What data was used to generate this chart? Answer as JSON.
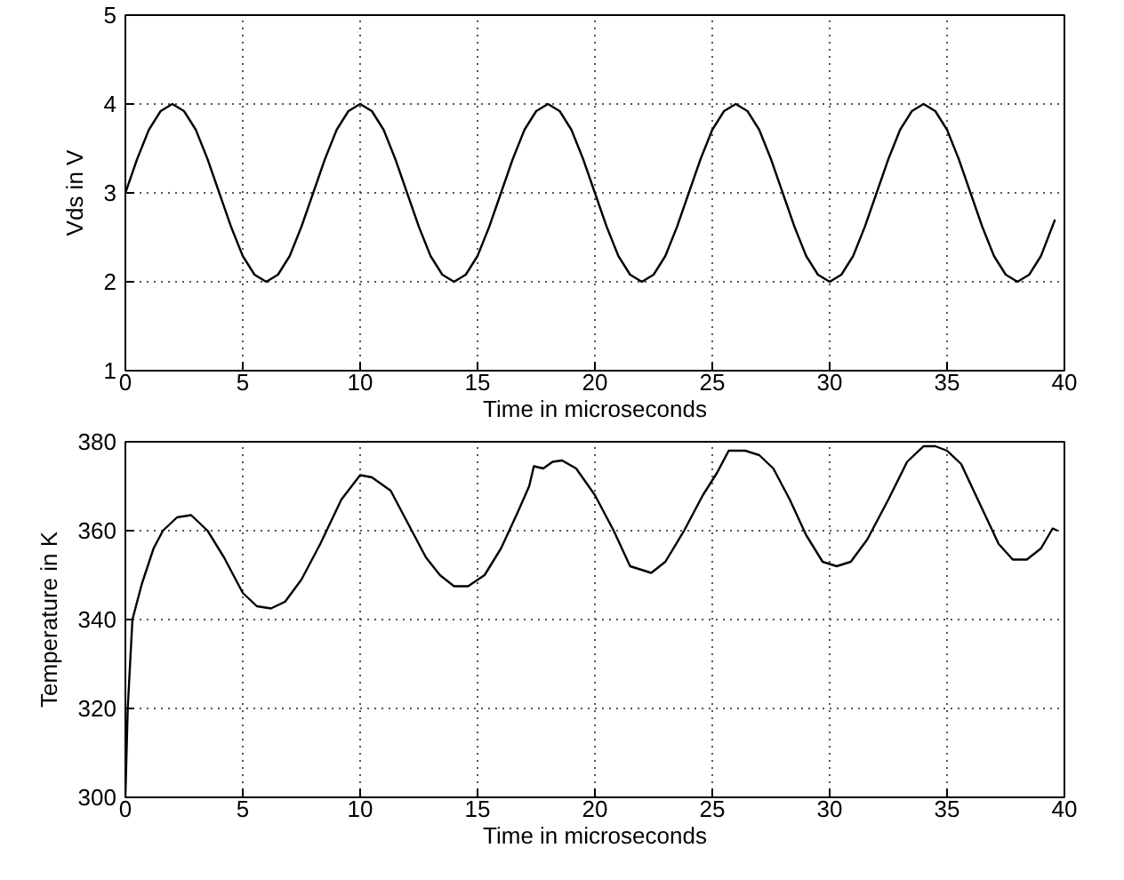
{
  "chart_data": [
    {
      "type": "line",
      "xlabel": "Time in microseconds",
      "ylabel": "Vds in V",
      "xlim": [
        0,
        40
      ],
      "ylim": [
        1,
        5
      ],
      "xticks": [
        0,
        5,
        10,
        15,
        20,
        25,
        30,
        35,
        40
      ],
      "yticks": [
        1,
        2,
        3,
        4,
        5
      ],
      "grid": true,
      "line_style": "solid",
      "series": [
        {
          "color": "#000000",
          "x": [
            0,
            0.5,
            1,
            1.5,
            2,
            2.5,
            3,
            3.5,
            4,
            4.5,
            5,
            5.5,
            6,
            6.5,
            7,
            7.5,
            8,
            8.5,
            9,
            9.5,
            10,
            10.5,
            11,
            11.5,
            12,
            12.5,
            13,
            13.5,
            14,
            14.5,
            15,
            15.5,
            16,
            16.5,
            17,
            17.5,
            18,
            18.5,
            19,
            19.5,
            20,
            20.5,
            21,
            21.5,
            22,
            22.5,
            23,
            23.5,
            24,
            24.5,
            25,
            25.5,
            26,
            26.5,
            27,
            27.5,
            28,
            28.5,
            29,
            29.5,
            30,
            30.5,
            31,
            31.5,
            32,
            32.5,
            33,
            33.5,
            34,
            34.5,
            35,
            35.5,
            36,
            36.5,
            37,
            37.5,
            38,
            38.5,
            39,
            39.6
          ],
          "values": [
            3.0,
            3.38,
            3.71,
            3.92,
            4.0,
            3.92,
            3.71,
            3.38,
            3.0,
            2.62,
            2.29,
            2.08,
            2.0,
            2.08,
            2.29,
            2.62,
            3.0,
            3.38,
            3.71,
            3.92,
            4.0,
            3.92,
            3.71,
            3.38,
            3.0,
            2.62,
            2.29,
            2.08,
            2.0,
            2.08,
            2.29,
            2.62,
            3.0,
            3.38,
            3.71,
            3.92,
            4.0,
            3.92,
            3.71,
            3.38,
            3.0,
            2.62,
            2.29,
            2.08,
            2.0,
            2.08,
            2.29,
            2.62,
            3.0,
            3.38,
            3.71,
            3.92,
            4.0,
            3.92,
            3.71,
            3.38,
            3.0,
            2.62,
            2.29,
            2.08,
            2.0,
            2.08,
            2.29,
            2.62,
            3.0,
            3.38,
            3.71,
            3.92,
            4.0,
            3.92,
            3.71,
            3.38,
            3.0,
            2.62,
            2.29,
            2.08,
            2.0,
            2.08,
            2.29,
            2.7
          ]
        }
      ]
    },
    {
      "type": "line",
      "xlabel": "Time in microseconds",
      "ylabel": "Temperature in K",
      "xlim": [
        0,
        40
      ],
      "ylim": [
        300,
        380
      ],
      "xticks": [
        0,
        5,
        10,
        15,
        20,
        25,
        30,
        35,
        40
      ],
      "yticks": [
        300,
        320,
        340,
        360,
        380
      ],
      "grid": true,
      "line_style": "solid",
      "series": [
        {
          "color": "#000000",
          "x": [
            0,
            0.1,
            0.3,
            0.7,
            1.2,
            1.6,
            2.2,
            2.8,
            3.5,
            4.2,
            5,
            5.6,
            6.2,
            6.8,
            7.5,
            8.3,
            9.2,
            10,
            10.5,
            11.3,
            12,
            12.8,
            13.4,
            14,
            14.6,
            15.3,
            16,
            16.7,
            17.2,
            17.4,
            17.8,
            18.2,
            18.6,
            19.2,
            20,
            20.8,
            21.5,
            22.4,
            23,
            23.8,
            24.6,
            25.2,
            25.7,
            26.4,
            27,
            27.6,
            28.3,
            29,
            29.7,
            30.3,
            30.9,
            31.6,
            32.5,
            33.3,
            34,
            34.5,
            35,
            35.6,
            36.4,
            37.2,
            37.8,
            38.4,
            39,
            39.5,
            39.7
          ],
          "values": [
            300,
            320,
            340,
            348,
            356,
            360,
            363,
            363.5,
            360,
            354,
            346,
            343,
            342.5,
            344,
            349,
            357,
            367,
            372.5,
            372,
            369,
            362,
            354,
            350,
            347.5,
            347.5,
            350,
            356,
            364,
            370,
            374.5,
            374,
            375.5,
            375.8,
            374,
            368,
            360,
            352,
            350.5,
            353,
            360,
            368,
            373,
            378,
            378,
            377,
            374,
            367,
            359,
            353,
            352,
            353,
            358,
            367,
            375.5,
            379,
            379,
            378,
            375,
            366,
            357,
            353.5,
            353.5,
            356,
            360.5,
            360
          ]
        }
      ]
    }
  ]
}
